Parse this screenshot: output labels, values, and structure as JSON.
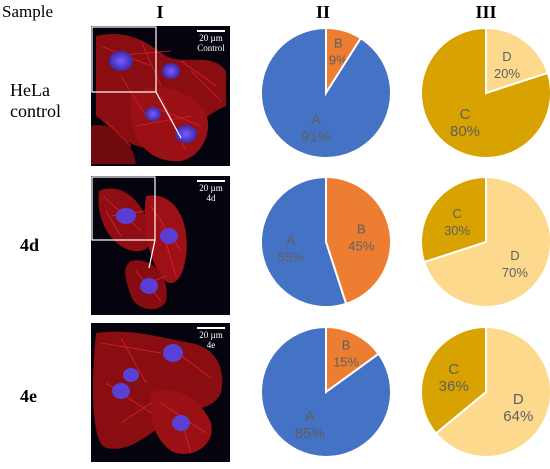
{
  "headers": {
    "sample": "Sample",
    "col1": "I",
    "col2": "II",
    "col3": "III"
  },
  "colors": {
    "A": "#4472c4",
    "B": "#ed7d31",
    "C": "#d8a300",
    "D": "#fcd98c"
  },
  "rows": [
    {
      "label_lines": [
        "HeLa",
        "control"
      ],
      "bold": false,
      "scale_text": "20 µm",
      "image_label": "Control",
      "chart_data": [
        {
          "type": "pie",
          "slices": [
            {
              "label": "A",
              "value": 91,
              "value_text": "91%"
            },
            {
              "label": "B",
              "value": 9,
              "value_text": "9%"
            }
          ]
        },
        {
          "type": "pie",
          "slices": [
            {
              "label": "C",
              "value": 80,
              "value_text": "80%"
            },
            {
              "label": "D",
              "value": 20,
              "value_text": "20%"
            }
          ]
        }
      ]
    },
    {
      "label_lines": [
        "4d"
      ],
      "bold": true,
      "scale_text": "20 µm",
      "image_label": "4d",
      "chart_data": [
        {
          "type": "pie",
          "slices": [
            {
              "label": "A",
              "value": 55,
              "value_text": "55%"
            },
            {
              "label": "B",
              "value": 45,
              "value_text": "45%"
            }
          ]
        },
        {
          "type": "pie",
          "slices": [
            {
              "label": "C",
              "value": 30,
              "value_text": "30%"
            },
            {
              "label": "D",
              "value": 70,
              "value_text": "70%"
            }
          ]
        }
      ]
    },
    {
      "label_lines": [
        "4e"
      ],
      "bold": true,
      "scale_text": "20 µm",
      "image_label": "4e",
      "chart_data": [
        {
          "type": "pie",
          "slices": [
            {
              "label": "A",
              "value": 85,
              "value_text": "85%"
            },
            {
              "label": "B",
              "value": 15,
              "value_text": "15%"
            }
          ]
        },
        {
          "type": "pie",
          "slices": [
            {
              "label": "C",
              "value": 36,
              "value_text": "36%"
            },
            {
              "label": "D",
              "value": 64,
              "value_text": "64%"
            }
          ]
        }
      ]
    }
  ]
}
